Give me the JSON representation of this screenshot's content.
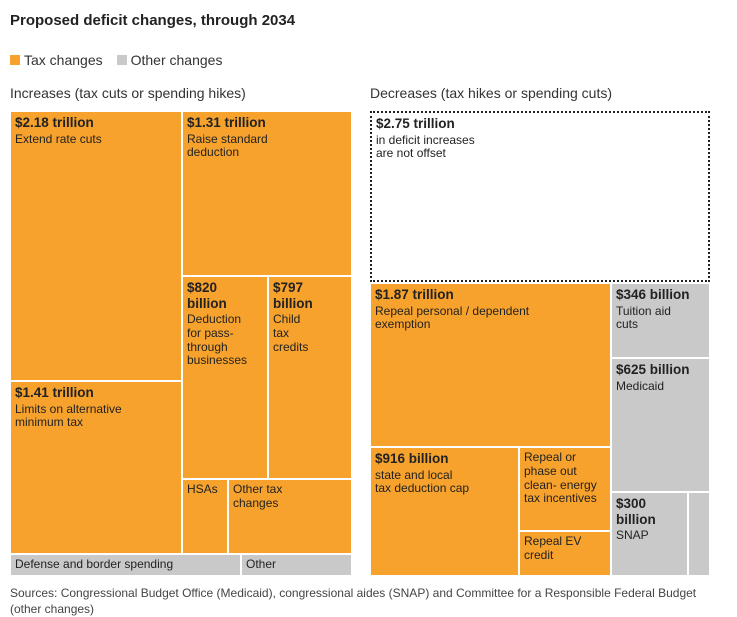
{
  "title": "Proposed deficit changes, through 2034",
  "legend": [
    {
      "label": "Tax changes",
      "color": "#F7A22C"
    },
    {
      "label": "Other changes",
      "color": "#C9C9C9"
    }
  ],
  "panels": {
    "increases": "Increases (tax cuts or spending hikes)",
    "decreases": "Decreases (tax hikes or spending cuts)"
  },
  "chart_data": {
    "type": "treemap",
    "units": "USD",
    "increases": [
      {
        "value_label": "$2.18 trillion",
        "label": "Extend rate cuts",
        "value": 2180000000000,
        "category": "Tax changes"
      },
      {
        "value_label": "$1.31 trillion",
        "label": "Raise standard deduction",
        "value": 1310000000000,
        "category": "Tax changes"
      },
      {
        "value_label": "$820 billion",
        "label": "Deduction for pass-through businesses",
        "value": 820000000000,
        "category": "Tax changes"
      },
      {
        "value_label": "$797 billion",
        "label": "Child tax credits",
        "value": 797000000000,
        "category": "Tax changes"
      },
      {
        "value_label": "$1.41 trillion",
        "label": "Limits on alternative minimum tax",
        "value": 1410000000000,
        "category": "Tax changes"
      },
      {
        "value_label": "",
        "label": "HSAs",
        "value": null,
        "category": "Tax changes"
      },
      {
        "value_label": "",
        "label": "Other tax changes",
        "value": null,
        "category": "Tax changes"
      },
      {
        "value_label": "",
        "label": "Defense and border spending",
        "value": null,
        "category": "Other changes"
      },
      {
        "value_label": "",
        "label": "Other",
        "value": null,
        "category": "Other changes"
      }
    ],
    "decreases": [
      {
        "value_label": "$2.75 trillion",
        "label": "in deficit increases are not offset",
        "value": 2750000000000,
        "category": "Not offset"
      },
      {
        "value_label": "$1.87 trillion",
        "label": "Repeal personal / dependent exemption",
        "value": 1870000000000,
        "category": "Tax changes"
      },
      {
        "value_label": "$346 billion",
        "label": "Tuition aid cuts",
        "value": 346000000000,
        "category": "Other changes"
      },
      {
        "value_label": "$625 billion",
        "label": "Medicaid",
        "value": 625000000000,
        "category": "Other changes"
      },
      {
        "value_label": "$916 billion",
        "label": "state and local tax deduction cap",
        "value": 916000000000,
        "category": "Tax changes"
      },
      {
        "value_label": "",
        "label": "Repeal or phase out clean- energy tax incentives",
        "value": null,
        "category": "Tax changes"
      },
      {
        "value_label": "",
        "label": "Repeal EV credit",
        "value": null,
        "category": "Tax changes"
      },
      {
        "value_label": "$300 billion",
        "label": "SNAP",
        "value": 300000000000,
        "category": "Other changes"
      },
      {
        "value_label": "",
        "label": "",
        "value": null,
        "category": "Other changes"
      }
    ]
  },
  "source": "Sources: Congressional Budget Office (Medicaid), congressional aides (SNAP) and Committee for a Responsible Federal Budget (other changes)"
}
